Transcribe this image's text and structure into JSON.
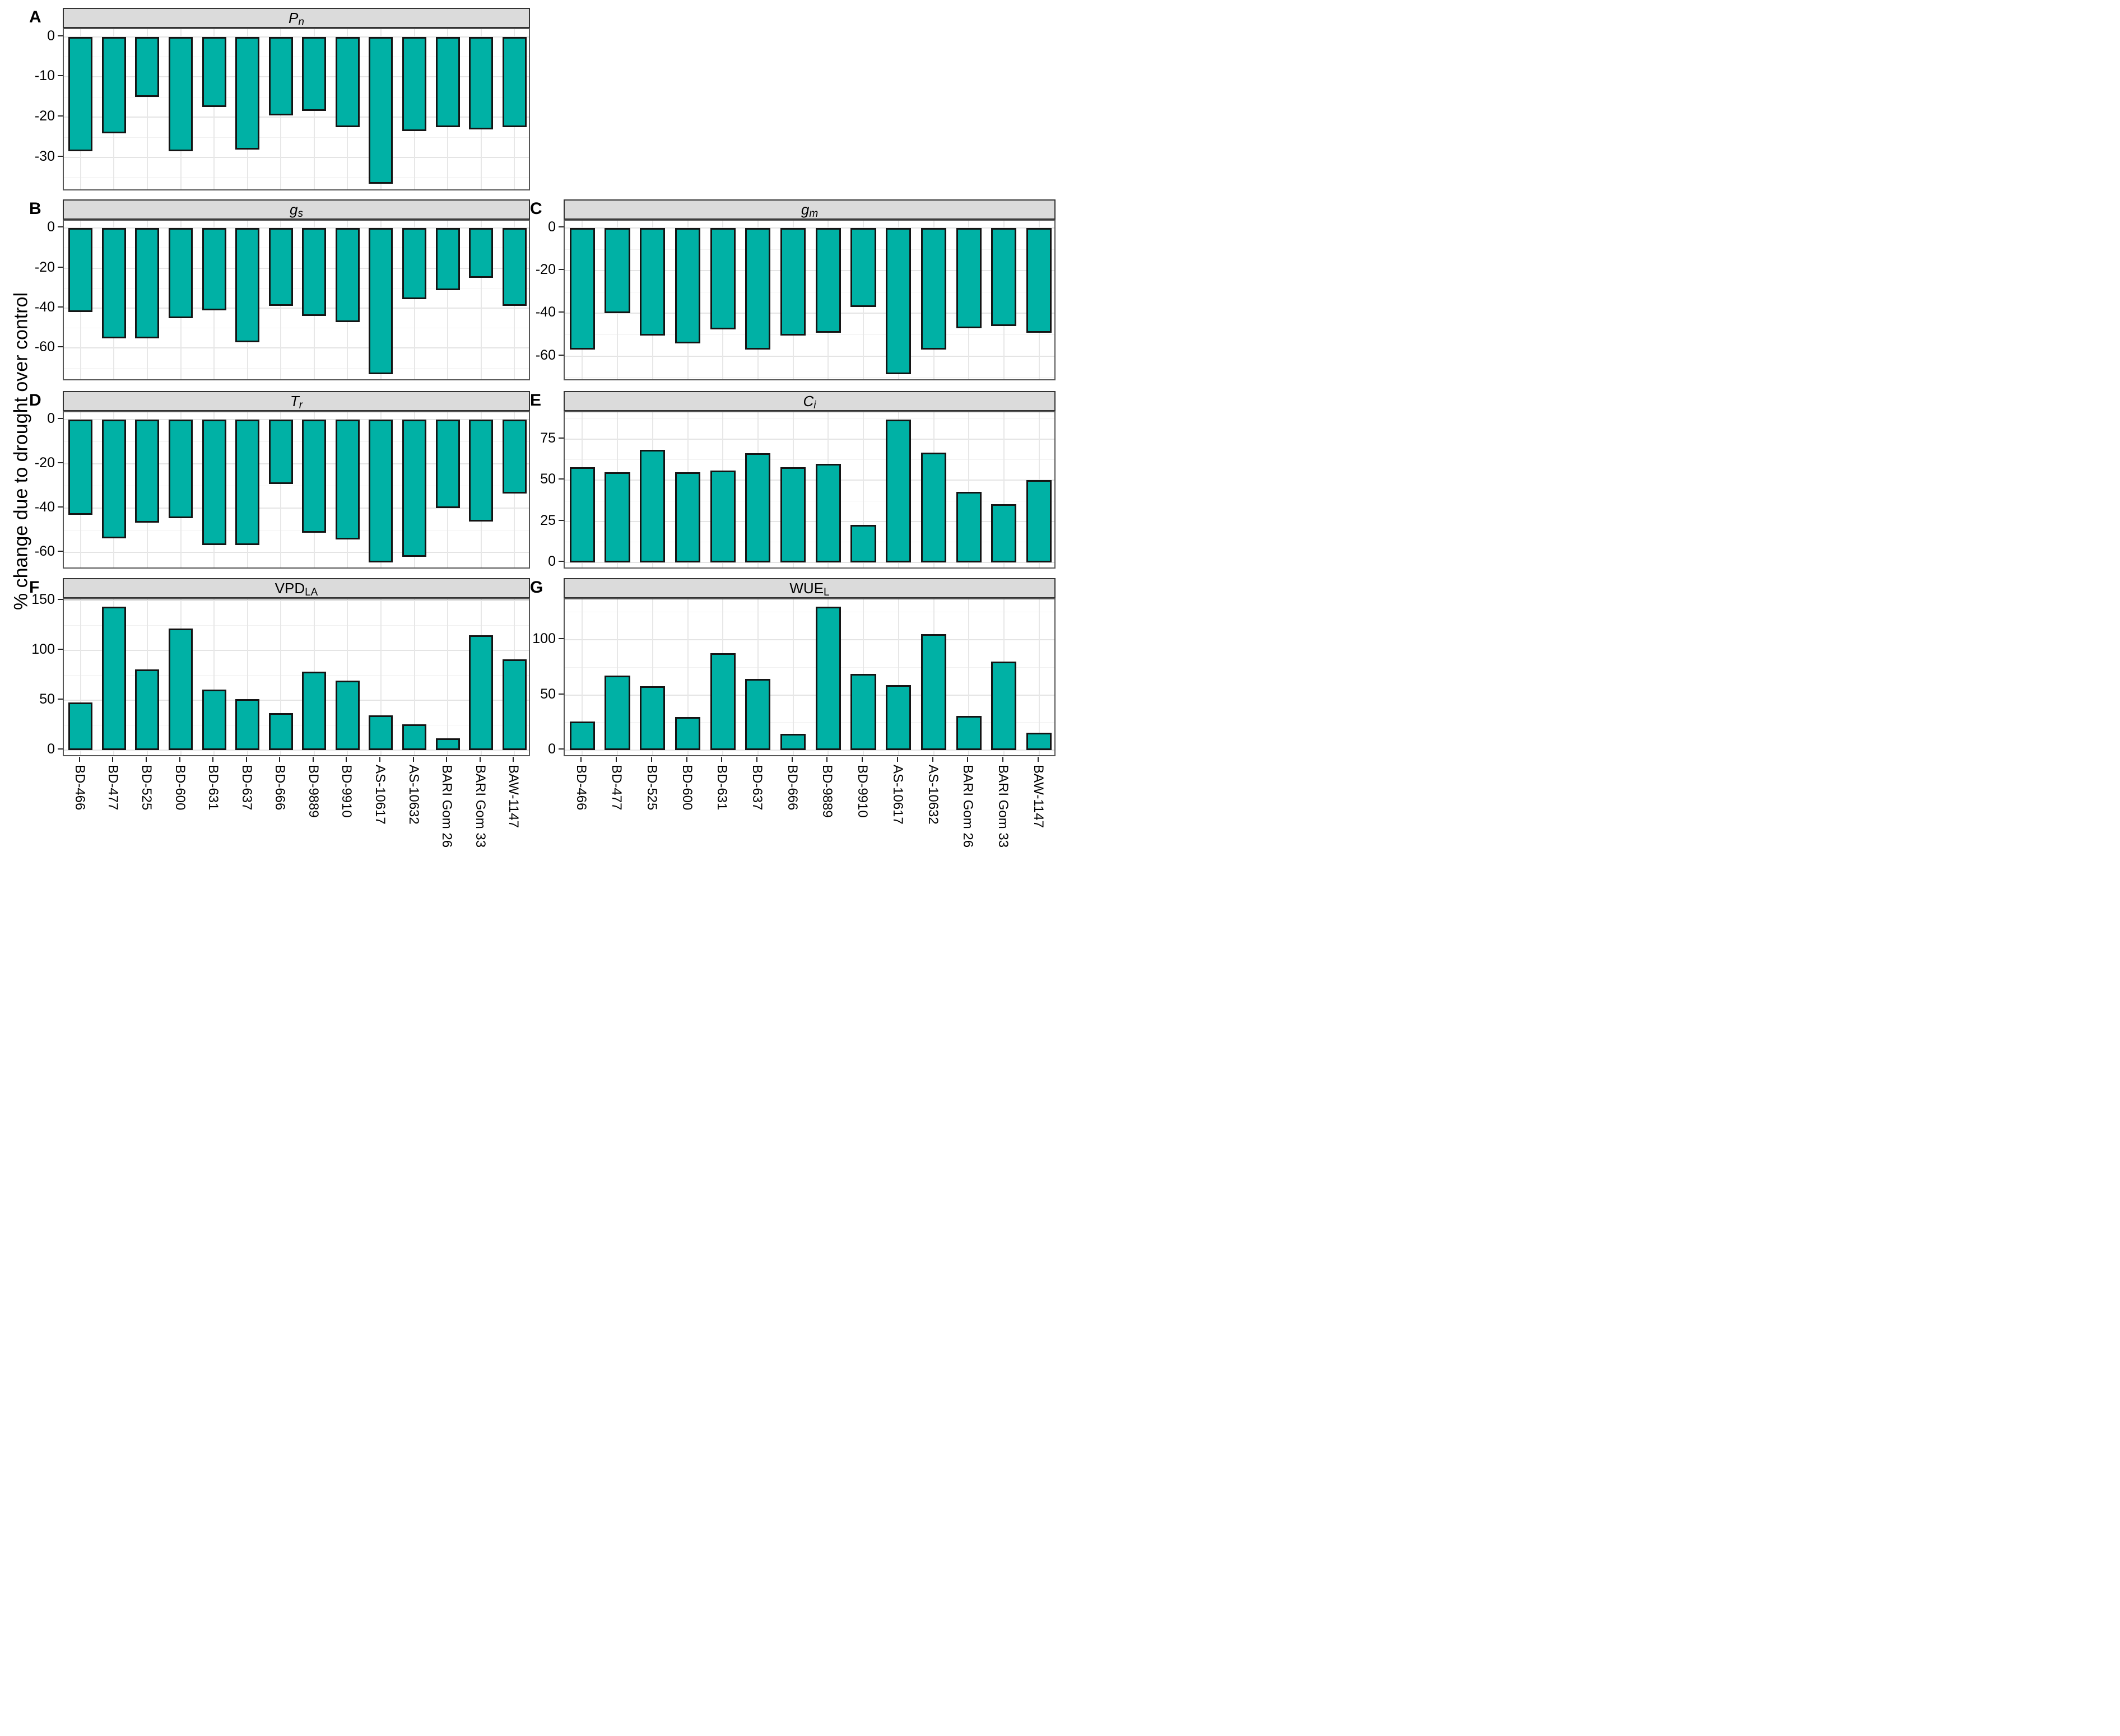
{
  "figure": {
    "y_axis_label": "% change due to drought over control",
    "bar_color": "#00B1A5",
    "bar_border_color": "#141414",
    "strip_bg": "#DBDBDB",
    "panel_border": "#555555",
    "grid_major": "#E4E4E4",
    "grid_minor": "#F1F1F1"
  },
  "categories": [
    "BD-466",
    "BD-477",
    "BD-525",
    "BD-600",
    "BD-631",
    "BD-637",
    "BD-666",
    "BD-9889",
    "BD-9910",
    "AS-10617",
    "AS-10632",
    "BARI Gom 26",
    "BARI Gom 33",
    "BAW-1147"
  ],
  "chart_data": [
    {
      "type": "bar",
      "letter": "A",
      "title": {
        "main": "P",
        "sub": "n",
        "italic": true
      },
      "col": "left",
      "row": "r1",
      "xaxis": false,
      "yticks": [
        0,
        -10,
        -20,
        -30
      ],
      "ylim": [
        -38.5,
        1.9
      ],
      "values": [
        -28.5,
        -24,
        -15,
        -28.5,
        -17.5,
        -28,
        -19.5,
        -18.5,
        -22.5,
        -36.5,
        -23.5,
        -22.5,
        -23,
        -22.5
      ]
    },
    {
      "type": "bar",
      "letter": "B",
      "title": {
        "main": "g",
        "sub": "s",
        "italic": true
      },
      "col": "left",
      "row": "r2",
      "xaxis": false,
      "yticks": [
        0,
        -20,
        -40,
        -60
      ],
      "ylim": [
        -76.7,
        3.7
      ],
      "values": [
        -42,
        -55,
        -55,
        -45,
        -41,
        -57,
        -39,
        -44,
        -47,
        -73,
        -35.5,
        -31,
        -25,
        -39
      ]
    },
    {
      "type": "bar",
      "letter": "C",
      "title": {
        "main": "g",
        "sub": "m",
        "italic": true
      },
      "col": "right",
      "row": "r2",
      "xaxis": false,
      "yticks": [
        0,
        -20,
        -40,
        -60
      ],
      "ylim": [
        -71.9,
        3.4
      ],
      "values": [
        -57,
        -40,
        -50.5,
        -54,
        -47.5,
        -57,
        -50.5,
        -49,
        -37,
        -68.5,
        -57,
        -47,
        -46,
        -49
      ]
    },
    {
      "type": "bar",
      "letter": "D",
      "title": {
        "main": "T",
        "sub": "r",
        "italic": true
      },
      "col": "left",
      "row": "r3",
      "xaxis": false,
      "yticks": [
        0,
        -20,
        -40,
        -60
      ],
      "ylim": [
        -67.7,
        3.2
      ],
      "values": [
        -43,
        -53.5,
        -46.5,
        -44.5,
        -56.5,
        -56.5,
        -29,
        -51,
        -54,
        -64.5,
        -62,
        -40,
        -46,
        -33.5
      ]
    },
    {
      "type": "bar",
      "letter": "E",
      "title": {
        "main": "C",
        "sub": "i",
        "italic": true
      },
      "col": "right",
      "row": "r3",
      "xaxis": false,
      "yticks": [
        0,
        25,
        50,
        75
      ],
      "ylim": [
        -4.4,
        91.4
      ],
      "values": [
        58,
        55,
        68.5,
        55,
        56,
        66.5,
        58,
        60,
        23,
        87,
        67,
        43,
        35.5,
        50
      ]
    },
    {
      "type": "bar",
      "letter": "F",
      "title": {
        "main": "VPD",
        "sub": "LA",
        "italic": false
      },
      "col": "left",
      "row": "r4",
      "xaxis": true,
      "yticks": [
        0,
        50,
        100,
        150
      ],
      "ylim": [
        -7.2,
        151.2
      ],
      "values": [
        48,
        144,
        81,
        122,
        61,
        51,
        37,
        78.5,
        69.5,
        35,
        26,
        12,
        115,
        91
      ]
    },
    {
      "type": "bar",
      "letter": "G",
      "title": {
        "main": "WUE",
        "sub": "L",
        "italic": false
      },
      "col": "right",
      "row": "r4",
      "xaxis": true,
      "yticks": [
        0,
        50,
        100
      ],
      "ylim": [
        -6.5,
        136.5
      ],
      "values": [
        26,
        67.5,
        58,
        30,
        88,
        64.5,
        15,
        130,
        69,
        59,
        105,
        31,
        80,
        16
      ]
    }
  ]
}
